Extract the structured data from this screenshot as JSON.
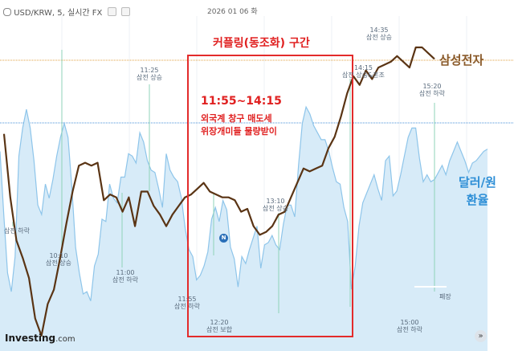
{
  "header": {
    "symbol_label": "USD/KRW, 5, 실시간 FX",
    "date_label": "2026 01 06 화"
  },
  "logo": {
    "brand": "Investing",
    "suffix": ".com"
  },
  "annotations": {
    "box_title": "커플링(동조화) 구간",
    "box_time": "11:55~14:15",
    "box_line1": "외국계 창구 매도세",
    "box_line2": "위장개미들 물량받이",
    "samsung_label": "삼성전자",
    "fx_label_line1": "달러/원",
    "fx_label_line2": "환율"
  },
  "events": [
    {
      "time": "",
      "text": "삼전 하락"
    },
    {
      "time": "10:10",
      "text": "삼전 상승"
    },
    {
      "time": "11:00",
      "text": "삼전 하락"
    },
    {
      "time": "11:25",
      "text": "삼전 상승"
    },
    {
      "time": "11:55",
      "text": "삼전 하락"
    },
    {
      "time": "12:20",
      "text": "삼전 보합"
    },
    {
      "time": "13:10",
      "text": "삼전 상승"
    },
    {
      "time": "14:15",
      "text": "삼전 상승&혼조"
    },
    {
      "time": "14:35",
      "text": "삼전 상승"
    },
    {
      "time": "15:20",
      "text": "삼전 하락"
    },
    {
      "time": "15:00",
      "text": "삼전 하락"
    },
    {
      "time": "",
      "text": "폐장"
    }
  ],
  "news_badge": "N",
  "colors": {
    "samsung_line": "#5a3414",
    "fx_line": "#8ec5ea",
    "fx_fill": "#d7ebf8",
    "box": "#e32b2b",
    "ref_orange": "#e0a040",
    "ref_blue": "#4a90d9"
  },
  "chart_data": {
    "type": "line",
    "series": [
      {
        "name": "달러/원 환율",
        "values": [
          0.72,
          0.45,
          0.2,
          0.12,
          0.27,
          0.7,
          0.82,
          0.9,
          0.82,
          0.68,
          0.49,
          0.45,
          0.58,
          0.52,
          0.6,
          0.7,
          0.78,
          0.84,
          0.78,
          0.57,
          0.31,
          0.2,
          0.11,
          0.12,
          0.08,
          0.23,
          0.28,
          0.43,
          0.42,
          0.58,
          0.52,
          0.5,
          0.61,
          0.61,
          0.71,
          0.7,
          0.67,
          0.8,
          0.76,
          0.68,
          0.64,
          0.63,
          0.56,
          0.48,
          0.71,
          0.64,
          0.61,
          0.59,
          0.52,
          0.39,
          0.3,
          0.27,
          0.17,
          0.19,
          0.23,
          0.29,
          0.43,
          0.48,
          0.42,
          0.51,
          0.47,
          0.31,
          0.26,
          0.14,
          0.27,
          0.24,
          0.3,
          0.35,
          0.4,
          0.22,
          0.32,
          0.33,
          0.36,
          0.32,
          0.3,
          0.41,
          0.49,
          0.49,
          0.44,
          0.66,
          0.84,
          0.91,
          0.88,
          0.83,
          0.8,
          0.77,
          0.77,
          0.72,
          0.65,
          0.59,
          0.58,
          0.48,
          0.42,
          0.13,
          0.23,
          0.4,
          0.5,
          0.54,
          0.58,
          0.62,
          0.56,
          0.51,
          0.68,
          0.7,
          0.53,
          0.55,
          0.62,
          0.7,
          0.78,
          0.82,
          0.82,
          0.69,
          0.59,
          0.62,
          0.59,
          0.6,
          0.63,
          0.66,
          0.62,
          0.68,
          0.72,
          0.76,
          0.72,
          0.68,
          0.63,
          0.67,
          0.68,
          0.7,
          0.72,
          0.73
        ]
      },
      {
        "name": "삼성전자",
        "values": [
          0.7,
          0.48,
          0.33,
          0.27,
          0.2,
          0.06,
          0.0,
          0.11,
          0.16,
          0.27,
          0.39,
          0.5,
          0.59,
          0.6,
          0.59,
          0.6,
          0.47,
          0.49,
          0.48,
          0.43,
          0.48,
          0.38,
          0.5,
          0.5,
          0.45,
          0.42,
          0.38,
          0.42,
          0.45,
          0.48,
          0.49,
          0.51,
          0.53,
          0.5,
          0.49,
          0.48,
          0.48,
          0.47,
          0.43,
          0.44,
          0.38,
          0.35,
          0.36,
          0.38,
          0.42,
          0.43,
          0.48,
          0.53,
          0.58,
          0.57,
          0.58,
          0.59,
          0.65,
          0.69,
          0.76,
          0.84,
          0.9,
          0.87,
          0.92,
          0.89,
          0.93,
          0.94,
          0.95,
          0.97,
          0.95,
          0.93,
          1.0,
          1.0,
          0.98,
          0.96
        ]
      }
    ],
    "note": "Values are normalized (0 = lowest, 1 = highest) per series; the chart has no price axis labels."
  }
}
